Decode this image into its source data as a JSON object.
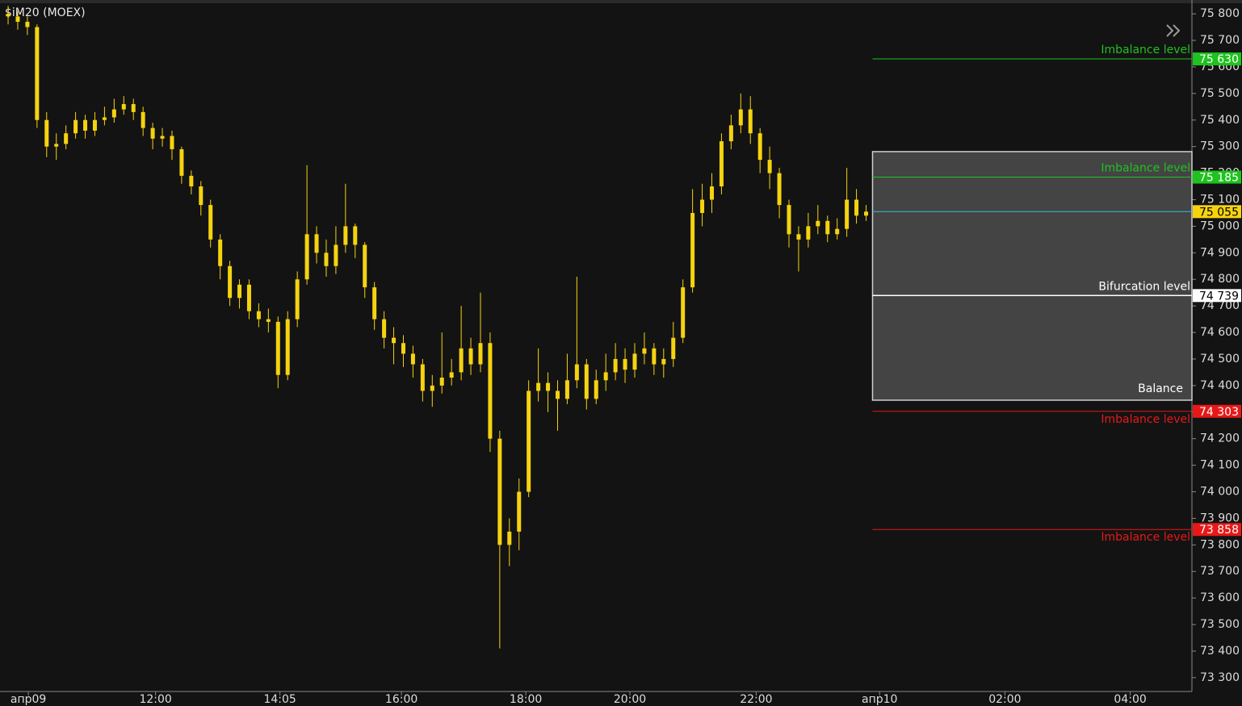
{
  "chart_data": {
    "type": "candlestick",
    "title": "$iM20 (MOEX)",
    "color": "#f5d30f",
    "background": "#131313",
    "x": [
      0,
      1,
      2,
      3,
      4,
      5,
      6,
      7,
      8,
      9,
      10,
      11,
      12,
      13,
      14,
      15,
      16,
      17,
      18,
      19,
      20,
      21,
      22,
      23,
      24,
      25,
      26,
      27,
      28,
      29,
      30,
      31,
      32,
      33,
      34,
      35,
      36,
      37,
      38,
      39,
      40,
      41,
      42,
      43,
      44,
      45,
      46,
      47,
      48,
      49,
      50,
      51,
      52,
      53,
      54,
      55,
      56,
      57,
      58,
      59,
      60,
      61,
      62,
      63,
      64,
      65,
      66,
      67,
      68,
      69,
      70,
      71,
      72,
      73,
      74,
      75,
      76,
      77,
      78,
      79,
      80,
      81,
      82,
      83,
      84,
      85,
      86,
      87,
      88,
      89
    ],
    "open": [
      75800,
      75790,
      75770,
      75750,
      75400,
      75300,
      75310,
      75350,
      75400,
      75360,
      75400,
      75410,
      75440,
      75460,
      75430,
      75370,
      75330,
      75340,
      75290,
      75190,
      75150,
      75080,
      74950,
      74850,
      74730,
      74780,
      74680,
      74650,
      74640,
      74440,
      74650,
      74800,
      74970,
      74900,
      74850,
      74930,
      75000,
      74930,
      74770,
      74650,
      74580,
      74560,
      74520,
      74480,
      74380,
      74400,
      74430,
      74450,
      74540,
      74480,
      74560,
      74200,
      73800,
      73850,
      74000,
      74380,
      74410,
      74380,
      74350,
      74420,
      74480,
      74350,
      74420,
      74450,
      74500,
      74460,
      74520,
      74540,
      74480,
      74500,
      74580,
      74770,
      75050,
      75100,
      75150,
      75320,
      75380,
      75440,
      75350,
      75250,
      75200,
      75080,
      74970,
      74950,
      75000,
      75020,
      74970,
      74990,
      75100,
      75040
    ],
    "high": [
      75830,
      75810,
      75790,
      75760,
      75430,
      75350,
      75380,
      75430,
      75420,
      75430,
      75450,
      75480,
      75490,
      75480,
      75450,
      75390,
      75370,
      75360,
      75300,
      75210,
      75170,
      75100,
      74970,
      74870,
      74800,
      74800,
      74710,
      74690,
      74660,
      74680,
      74830,
      75230,
      75000,
      74950,
      75000,
      75160,
      75010,
      74940,
      74790,
      74680,
      74620,
      74590,
      74550,
      74500,
      74440,
      74600,
      74500,
      74700,
      74580,
      74750,
      74600,
      74230,
      73900,
      74050,
      74420,
      74540,
      74450,
      74420,
      74520,
      74810,
      74500,
      74460,
      74520,
      74560,
      74540,
      74560,
      74600,
      74560,
      74540,
      74640,
      74800,
      75140,
      75160,
      75200,
      75350,
      75420,
      75500,
      75490,
      75370,
      75300,
      75220,
      75100,
      75000,
      75050,
      75080,
      75040,
      75030,
      75220,
      75140,
      75080
    ],
    "low": [
      75760,
      75740,
      75720,
      75370,
      75260,
      75250,
      75290,
      75330,
      75330,
      75340,
      75380,
      75390,
      75420,
      75400,
      75340,
      75290,
      75300,
      75250,
      75160,
      75120,
      75040,
      74920,
      74800,
      74700,
      74690,
      74650,
      74620,
      74600,
      74390,
      74420,
      74620,
      74780,
      74860,
      74810,
      74820,
      74900,
      74880,
      74730,
      74610,
      74540,
      74480,
      74470,
      74430,
      74340,
      74320,
      74370,
      74400,
      74420,
      74440,
      74450,
      74150,
      73410,
      73720,
      73780,
      73980,
      74340,
      74300,
      74230,
      74330,
      74390,
      74310,
      74330,
      74380,
      74420,
      74410,
      74430,
      74480,
      74440,
      74430,
      74470,
      74560,
      74750,
      75000,
      75050,
      75120,
      75290,
      75350,
      75310,
      75200,
      75140,
      75030,
      74920,
      74830,
      74920,
      74970,
      74940,
      74950,
      74960,
      75010,
      75020
    ],
    "close": [
      75790,
      75770,
      75750,
      75400,
      75300,
      75310,
      75350,
      75400,
      75360,
      75400,
      75410,
      75440,
      75460,
      75430,
      75370,
      75330,
      75340,
      75290,
      75190,
      75150,
      75080,
      74950,
      74850,
      74730,
      74780,
      74680,
      74650,
      74640,
      74440,
      74650,
      74800,
      74970,
      74900,
      74850,
      74930,
      75000,
      74930,
      74770,
      74650,
      74580,
      74560,
      74520,
      74480,
      74380,
      74400,
      74430,
      74450,
      74540,
      74480,
      74560,
      74200,
      73800,
      73850,
      74000,
      74380,
      74410,
      74380,
      74350,
      74420,
      74480,
      74350,
      74420,
      74450,
      74500,
      74460,
      74520,
      74540,
      74480,
      74500,
      74580,
      74770,
      75050,
      75100,
      75150,
      75320,
      75380,
      75440,
      75350,
      75250,
      75200,
      75080,
      74970,
      74950,
      75000,
      75020,
      74970,
      74990,
      75100,
      75040,
      75055
    ],
    "xlim": [
      -0.84,
      122.8
    ],
    "xticks": [
      {
        "value": 2.1,
        "label": "апр09"
      },
      {
        "value": 15.3,
        "label": "12:00"
      },
      {
        "value": 28.2,
        "label": "14:05"
      },
      {
        "value": 40.8,
        "label": "16:00"
      },
      {
        "value": 53.7,
        "label": "18:00"
      },
      {
        "value": 64.5,
        "label": "20:00"
      },
      {
        "value": 77.6,
        "label": "22:00"
      },
      {
        "value": 90.4,
        "label": "апр10"
      },
      {
        "value": 103.4,
        "label": "02:00"
      },
      {
        "value": 116.4,
        "label": "04:00"
      }
    ],
    "ylim": [
      73248,
      75852
    ],
    "yticks": [
      {
        "value": 73300,
        "label": "73 300"
      },
      {
        "value": 73400,
        "label": "73 400"
      },
      {
        "value": 73500,
        "label": "73 500"
      },
      {
        "value": 73600,
        "label": "73 600"
      },
      {
        "value": 73700,
        "label": "73 700"
      },
      {
        "value": 73800,
        "label": "73 800"
      },
      {
        "value": 73900,
        "label": "73 900"
      },
      {
        "value": 74000,
        "label": "74 000"
      },
      {
        "value": 74100,
        "label": "74 100"
      },
      {
        "value": 74200,
        "label": "74 200"
      },
      {
        "value": 74300,
        "label": "74 300"
      },
      {
        "value": 74400,
        "label": "74 400"
      },
      {
        "value": 74500,
        "label": "74 500"
      },
      {
        "value": 74600,
        "label": "74 600"
      },
      {
        "value": 74700,
        "label": "74 700"
      },
      {
        "value": 74800,
        "label": "74 800"
      },
      {
        "value": 74900,
        "label": "74 900"
      },
      {
        "value": 75000,
        "label": "75 000"
      },
      {
        "value": 75100,
        "label": "75 100"
      },
      {
        "value": 75200,
        "label": "75 200"
      },
      {
        "value": 75300,
        "label": "75 300"
      },
      {
        "value": 75400,
        "label": "75 400"
      },
      {
        "value": 75500,
        "label": "75 500"
      },
      {
        "value": 75600,
        "label": "75 600"
      },
      {
        "value": 75700,
        "label": "75 700"
      },
      {
        "value": 75800,
        "label": "75 800"
      }
    ],
    "balance_zone": {
      "name": "Balance",
      "high": 75281,
      "low": 74345,
      "color": "#4a4a4a"
    },
    "levels": [
      {
        "name": "Imbalance level",
        "value": 75630,
        "value_label": "75 630",
        "color": "#1fc21f",
        "text_color": "#ffffff"
      },
      {
        "name": "Imbalance level",
        "value": 75185,
        "value_label": "75 185",
        "color": "#1fc21f",
        "text_color": "#ffffff"
      },
      {
        "value": 75055,
        "value_label": "75 055",
        "color": "#f5d30f",
        "line_color": "#3fb6d6",
        "text_color": "#000000"
      },
      {
        "name": "Bifurcation level",
        "value": 74739,
        "value_label": "74 739",
        "color": "#ffffff",
        "text_color": "#000000"
      },
      {
        "name": "Imbalance level",
        "value": 74303,
        "value_label": "74 303",
        "color": "#e81818",
        "text_color": "#ffffff"
      },
      {
        "name": "Imbalance level",
        "value": 73858,
        "value_label": "73 858",
        "color": "#e81818",
        "text_color": "#ffffff"
      }
    ]
  }
}
